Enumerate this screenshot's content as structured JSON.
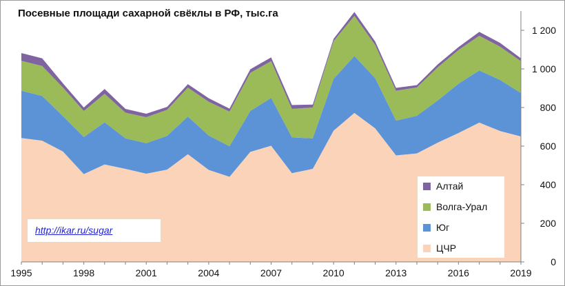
{
  "chart_data": {
    "type": "area",
    "stacked": true,
    "title": "Посевные площади сахарной свёклы в РФ, тыс.га",
    "x": [
      1995,
      1996,
      1997,
      1998,
      1999,
      2000,
      2001,
      2002,
      2003,
      2004,
      2005,
      2006,
      2007,
      2008,
      2009,
      2010,
      2011,
      2012,
      2013,
      2014,
      2015,
      2016,
      2017,
      2018,
      2019
    ],
    "x_tick_labels": [
      "1995",
      "1998",
      "2001",
      "2004",
      "2007",
      "2010",
      "2013",
      "2016",
      "2019"
    ],
    "x_tick_values": [
      1995,
      1998,
      2001,
      2004,
      2007,
      2010,
      2013,
      2016,
      2019
    ],
    "ylim": [
      0,
      1300
    ],
    "y_ticks": [
      0,
      200,
      400,
      600,
      800,
      1000,
      1200
    ],
    "y_tick_labels": [
      "0",
      "200",
      "400",
      "600",
      "800",
      "1 000",
      "1 200"
    ],
    "y_axis_side": "right",
    "series": [
      {
        "name": "ЦЧР",
        "color": "#fbd3b8",
        "values": [
          642,
          628,
          572,
          455,
          505,
          482,
          457,
          478,
          558,
          477,
          441,
          570,
          602,
          460,
          482,
          680,
          772,
          692,
          552,
          562,
          618,
          668,
          722,
          678,
          650
        ]
      },
      {
        "name": "Юг",
        "color": "#5b93d6",
        "values": [
          245,
          232,
          183,
          192,
          218,
          158,
          158,
          175,
          195,
          178,
          158,
          212,
          248,
          185,
          158,
          268,
          295,
          260,
          180,
          195,
          218,
          255,
          270,
          265,
          225
        ]
      },
      {
        "name": "Волга-Урал",
        "color": "#9bbb59",
        "values": [
          155,
          155,
          148,
          135,
          148,
          133,
          135,
          135,
          150,
          175,
          180,
          198,
          190,
          148,
          160,
          196,
          208,
          172,
          155,
          147,
          172,
          175,
          180,
          172,
          165
        ]
      },
      {
        "name": "Алтай",
        "color": "#8064a2",
        "values": [
          40,
          40,
          22,
          18,
          25,
          20,
          18,
          15,
          18,
          18,
          15,
          18,
          20,
          20,
          15,
          12,
          20,
          18,
          15,
          12,
          15,
          15,
          20,
          20,
          15
        ]
      }
    ],
    "grid": false,
    "legend": "bottom-right",
    "legend_order": [
      "Алтай",
      "Волга-Урал",
      "Юг",
      "ЦЧР"
    ],
    "annotation": "http://ikar.ru/sugar"
  }
}
